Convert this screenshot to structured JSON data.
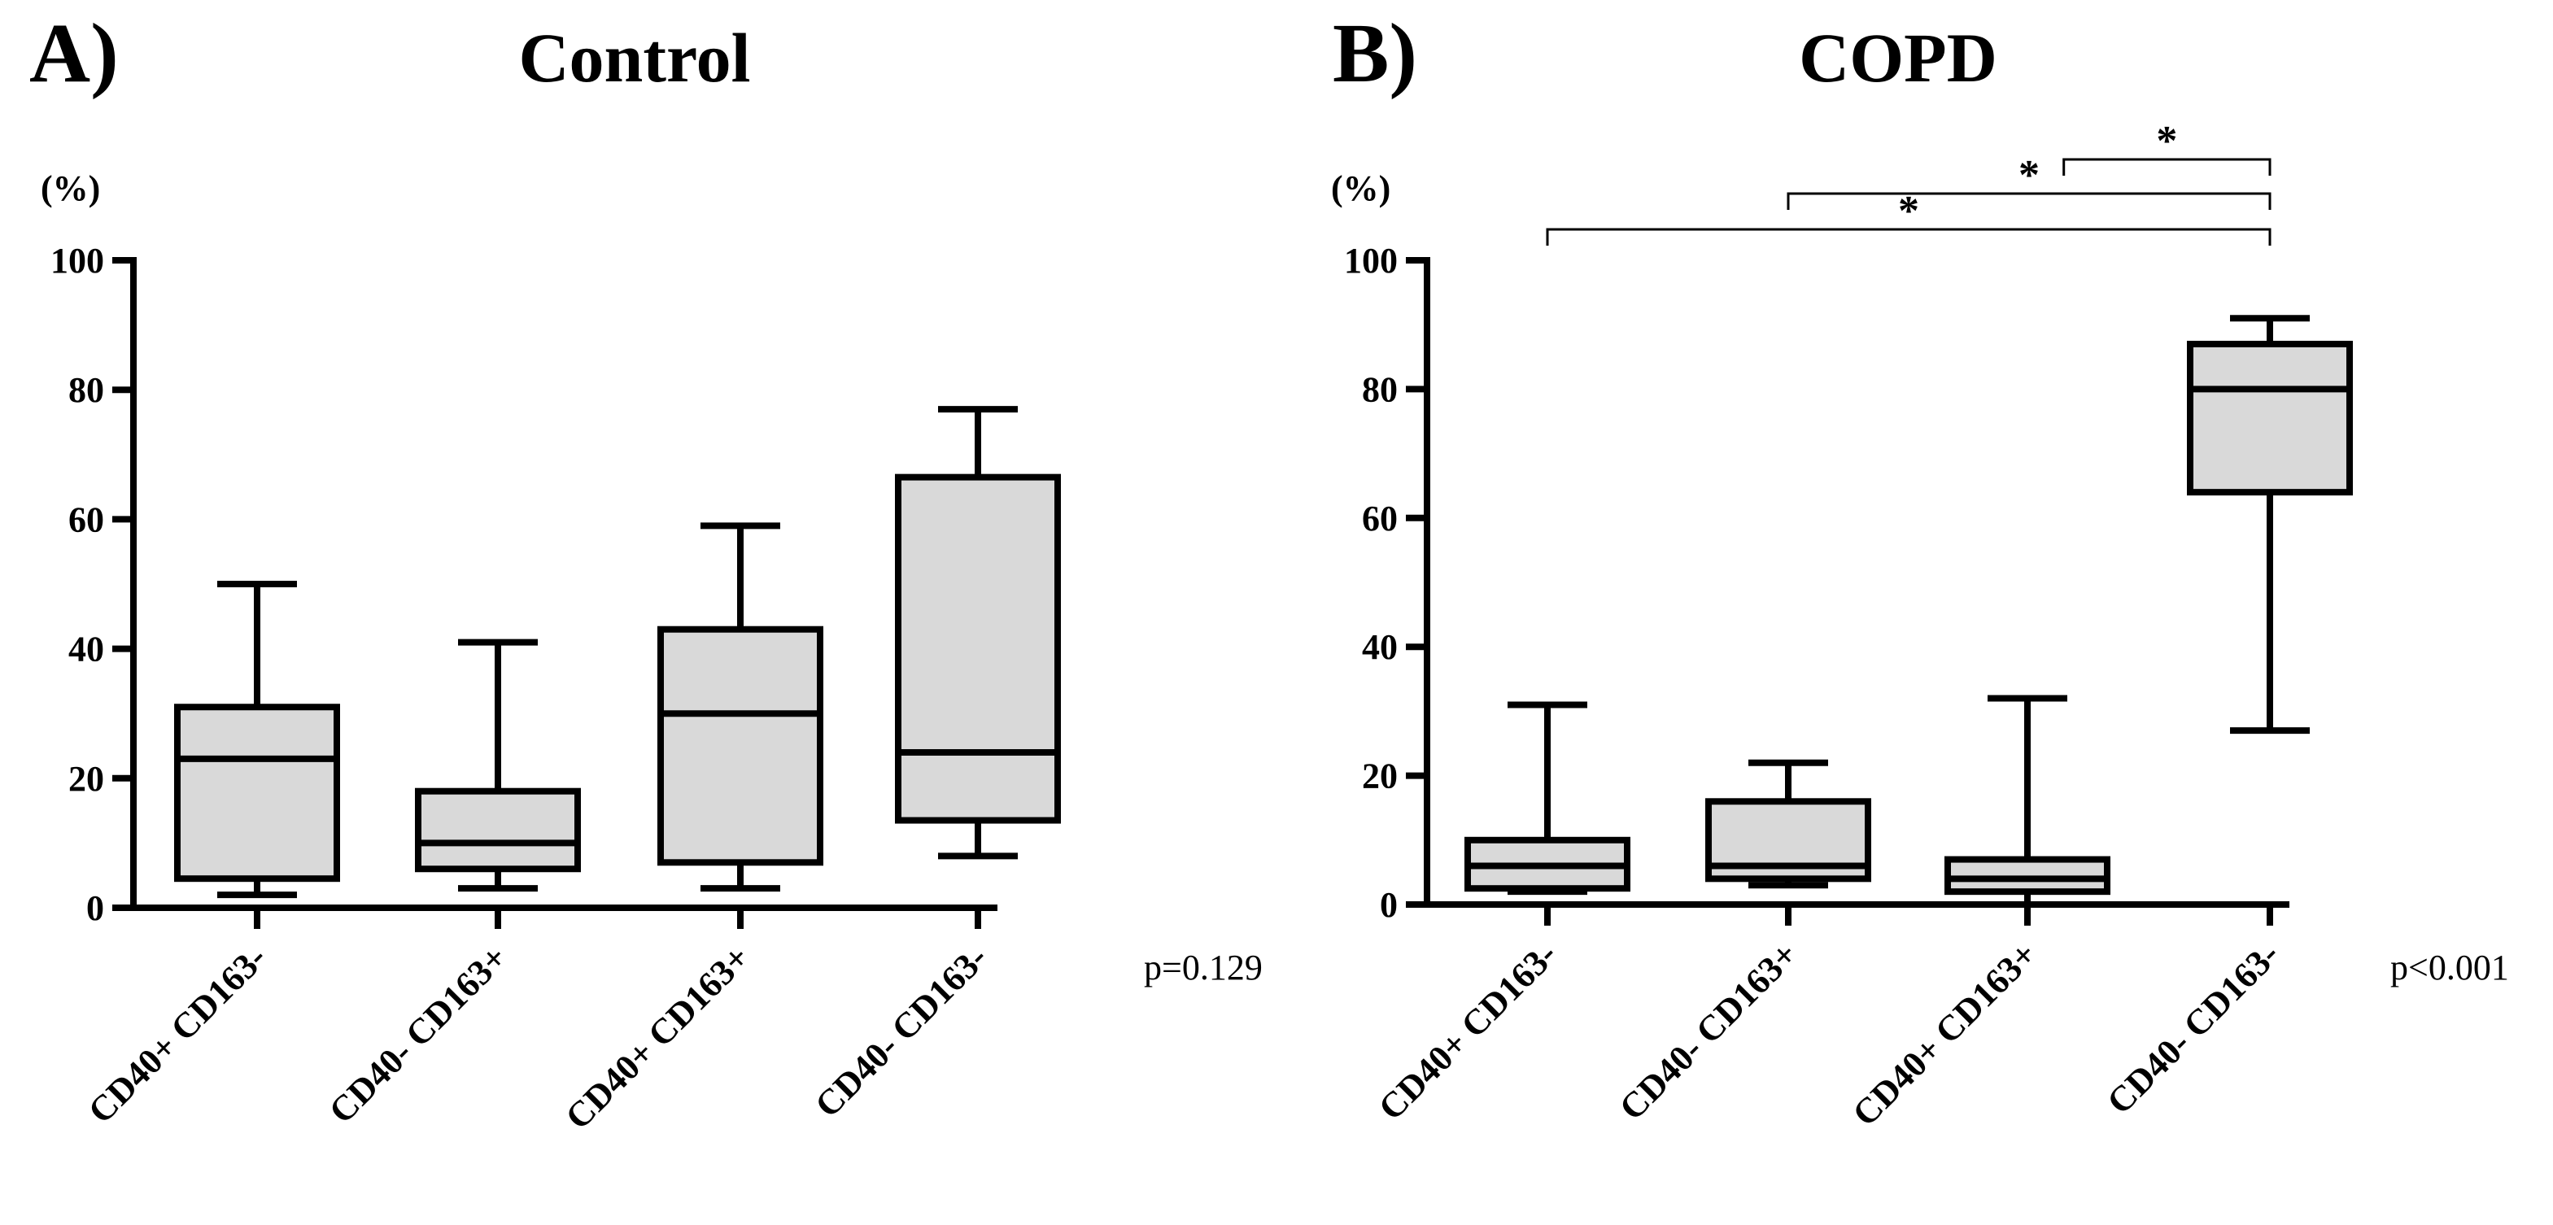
{
  "chart_data": [
    {
      "type": "box",
      "panel_label": "A)",
      "title": "Control",
      "ylabel": "(%)",
      "ylim": [
        0,
        100
      ],
      "yticks": [
        0,
        20,
        40,
        60,
        80,
        100
      ],
      "categories": [
        "CD40+ CD163-",
        "CD40- CD163+",
        "CD40+ CD163+",
        "CD40- CD163-"
      ],
      "boxes": [
        {
          "min": 2,
          "q1": 4.5,
          "median": 23,
          "q3": 31,
          "max": 50
        },
        {
          "min": 3,
          "q1": 6,
          "median": 10,
          "q3": 18,
          "max": 41
        },
        {
          "min": 3,
          "q1": 7,
          "median": 30,
          "q3": 43,
          "max": 59
        },
        {
          "min": 8,
          "q1": 13.5,
          "median": 24,
          "q3": 66.5,
          "max": 77
        }
      ],
      "p_value": "p=0.129",
      "significance": []
    },
    {
      "type": "box",
      "panel_label": "B)",
      "title": "COPD",
      "ylabel": "(%)",
      "ylim": [
        0,
        100
      ],
      "yticks": [
        0,
        20,
        40,
        60,
        80,
        100
      ],
      "categories": [
        "CD40+ CD163-",
        "CD40- CD163+",
        "CD40+ CD163+",
        "CD40- CD163-"
      ],
      "boxes": [
        {
          "min": 2,
          "q1": 2.5,
          "median": 6,
          "q3": 10,
          "max": 31
        },
        {
          "min": 3,
          "q1": 4,
          "median": 6,
          "q3": 16,
          "max": 22
        },
        {
          "min": 0,
          "q1": 2,
          "median": 4,
          "q3": 7,
          "max": 32
        },
        {
          "min": 27,
          "q1": 64,
          "median": 80,
          "q3": 87,
          "max": 91
        }
      ],
      "p_value": "p<0.001",
      "significance": [
        {
          "from": 0,
          "to": 3,
          "label": "*"
        },
        {
          "from": 1,
          "to": 3,
          "label": "*"
        },
        {
          "from": 2.15,
          "to": 3,
          "label": "*"
        }
      ]
    }
  ]
}
